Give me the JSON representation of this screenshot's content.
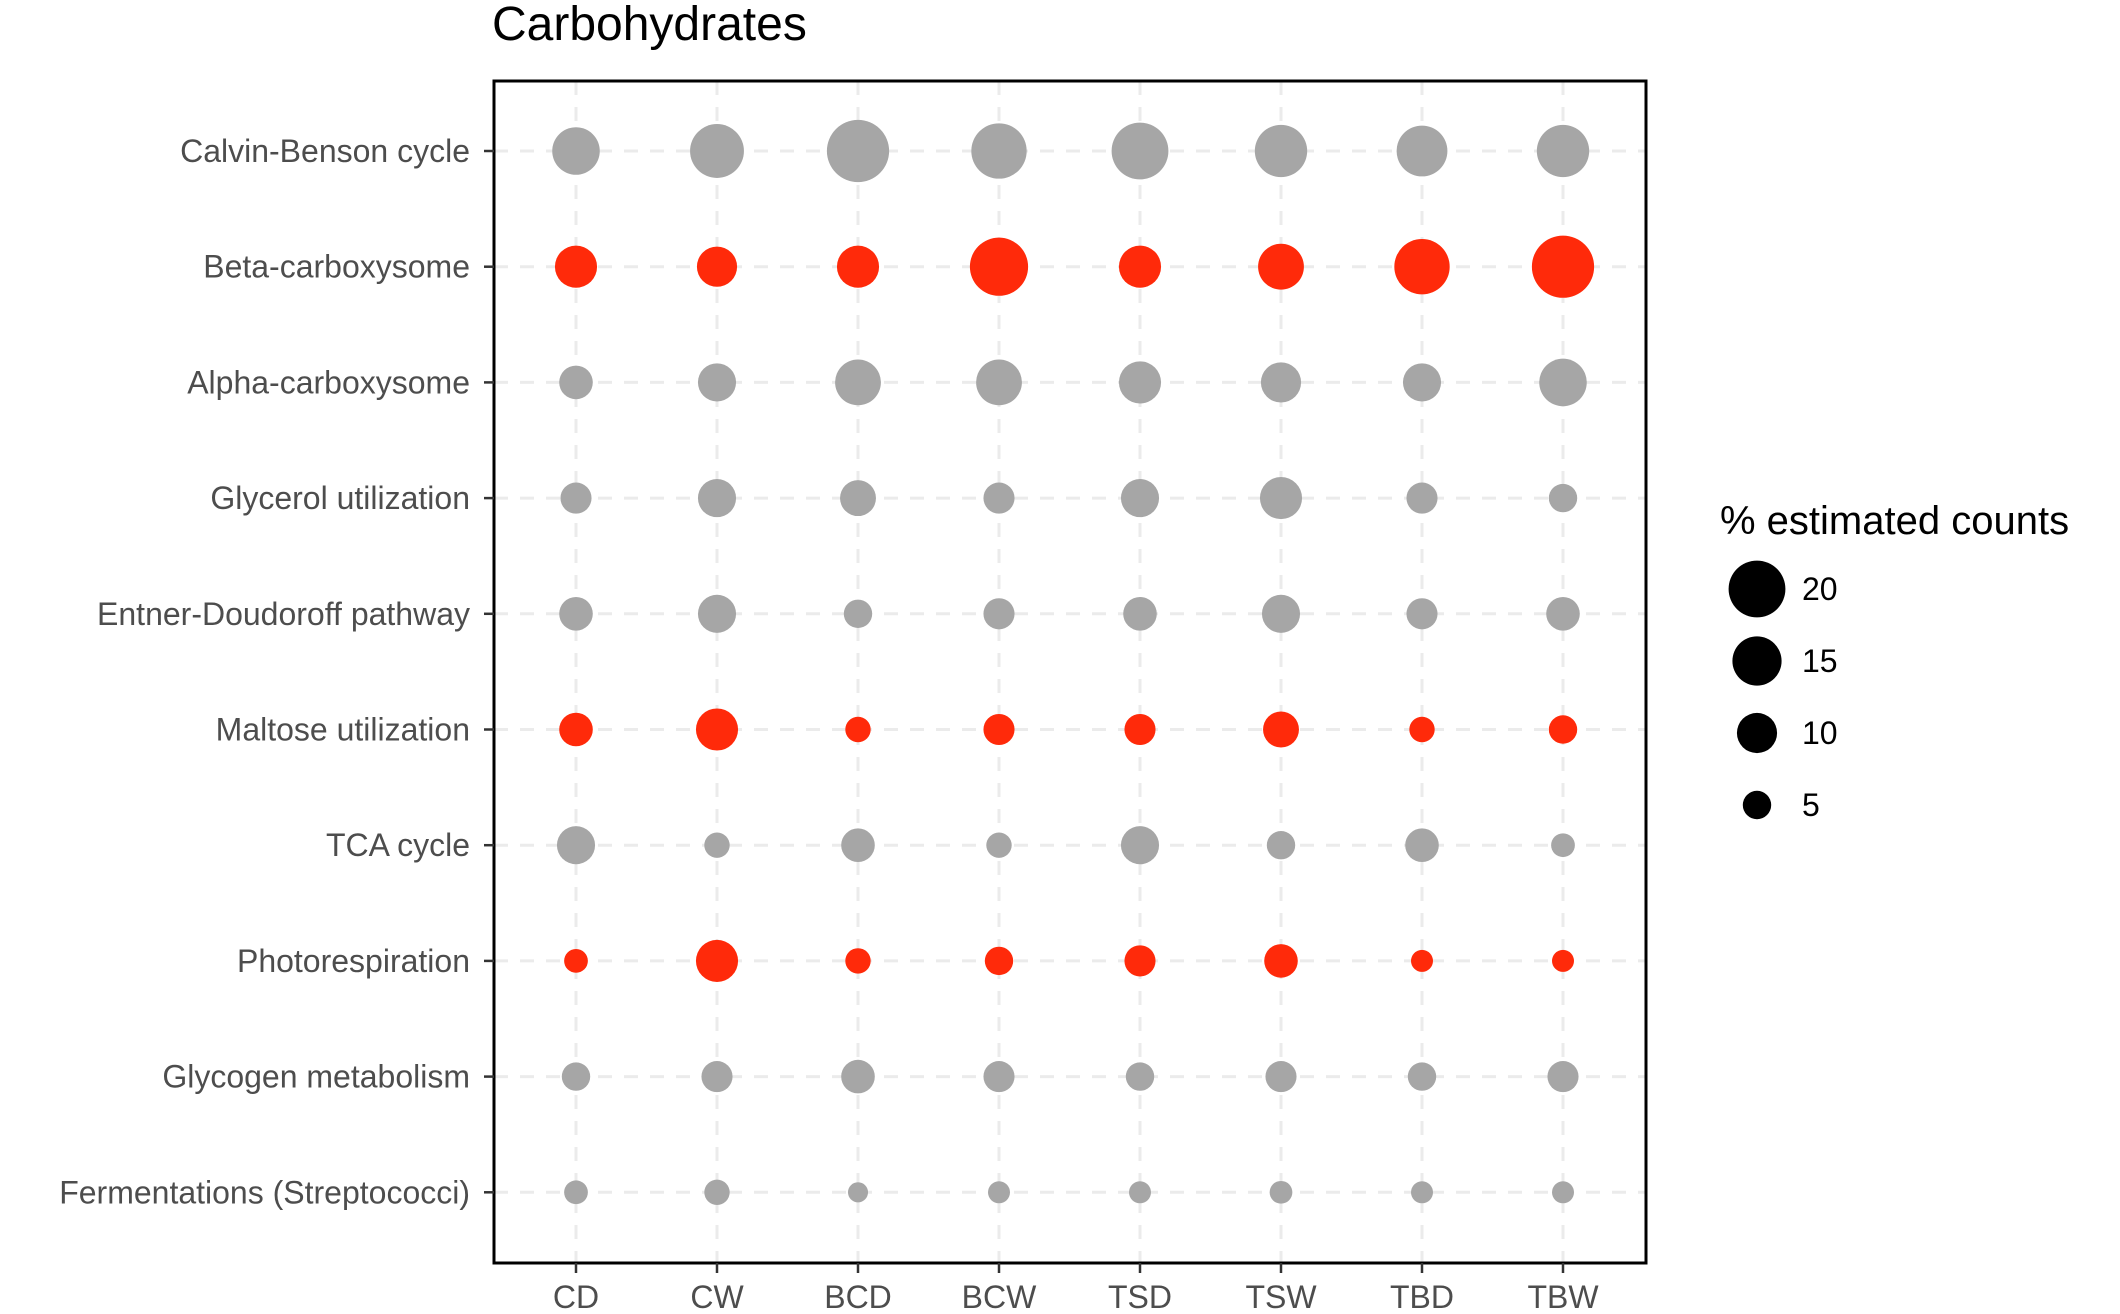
{
  "chart_data": {
    "type": "scatter",
    "title": "Carbohydrates",
    "x_categories": [
      "CD",
      "CW",
      "BCD",
      "BCW",
      "TSD",
      "TSW",
      "TBD",
      "TBW"
    ],
    "y_categories": [
      "Calvin-Benson cycle",
      "Beta-carboxysome",
      "Alpha-carboxysome",
      "Glycerol utilization",
      "Entner-Doudoroff pathway",
      "Maltose utilization",
      "TCA cycle",
      "Photorespiration",
      "Glycogen metabolism",
      "Fermentations (Streptococci)"
    ],
    "size_legend": {
      "title": "% estimated counts",
      "values": [
        20,
        15,
        10,
        5
      ],
      "labels": [
        "20",
        "15",
        "10",
        "5"
      ]
    },
    "colors": {
      "highlight": "#ff2a0a",
      "default": "#a6a6a6"
    },
    "highlighted_rows": [
      "Beta-carboxysome",
      "Maltose utilization",
      "Photorespiration"
    ],
    "grid": true,
    "legend_position": "right",
    "values": [
      [
        14,
        18,
        24,
        19,
        20,
        17,
        16,
        17
      ],
      [
        11,
        10,
        11,
        21,
        11,
        13,
        19,
        24
      ],
      [
        7,
        9,
        13,
        13,
        11,
        10,
        9,
        14
      ],
      [
        6,
        9,
        8,
        6,
        9,
        11,
        6,
        5
      ],
      [
        7,
        9,
        5,
        6,
        7,
        9,
        6,
        7
      ],
      [
        7,
        11,
        4,
        6,
        6,
        8,
        4,
        5
      ],
      [
        9,
        4,
        7,
        4,
        9,
        5,
        7,
        3.5
      ],
      [
        3.5,
        11,
        4,
        5,
        6,
        7,
        3,
        3
      ],
      [
        5,
        6,
        7,
        6,
        5,
        6,
        5,
        6
      ],
      [
        3.5,
        4,
        2.5,
        3,
        3,
        3.2,
        3,
        3
      ]
    ]
  }
}
